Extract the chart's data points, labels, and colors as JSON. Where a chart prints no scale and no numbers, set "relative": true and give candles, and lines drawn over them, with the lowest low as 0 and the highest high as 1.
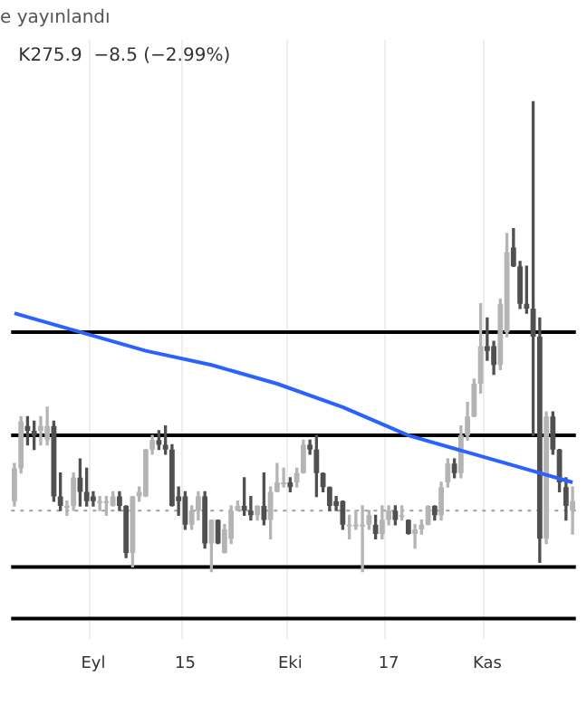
{
  "chart_data": {
    "type": "candlestick",
    "title": "e yayınlandı",
    "annotations": [
      "K275.9  −8.5 (−2.99%)"
    ],
    "relative": true,
    "grid": "x",
    "legend": false,
    "marker": "none",
    "categories": [
      null,
      null,
      null,
      null,
      null,
      null,
      null,
      null,
      null,
      null,
      null,
      null,
      "Eyl",
      null,
      null,
      null,
      null,
      null,
      null,
      null,
      null,
      null,
      null,
      null,
      null,
      null,
      "15",
      null,
      null,
      null,
      null,
      null,
      null,
      null,
      null,
      null,
      null,
      null,
      null,
      null,
      null,
      null,
      "Eki",
      null,
      null,
      null,
      null,
      null,
      null,
      null,
      null,
      null,
      null,
      null,
      null,
      null,
      null,
      "17",
      null,
      null,
      null,
      null,
      null,
      null,
      null,
      null,
      null,
      null,
      null,
      null,
      null,
      null,
      "Kas",
      null,
      null,
      null,
      null,
      null,
      null,
      null,
      null,
      null,
      null,
      null,
      null,
      null
    ],
    "ohlc": [
      [
        0.15,
        0.23,
        0.14,
        0.22
      ],
      [
        0.22,
        0.33,
        0.21,
        0.32
      ],
      [
        0.31,
        0.33,
        0.27,
        0.3
      ],
      [
        0.3,
        0.32,
        0.26,
        0.29
      ],
      [
        0.3,
        0.33,
        0.27,
        0.31
      ],
      [
        0.28,
        0.35,
        0.27,
        0.31
      ],
      [
        0.31,
        0.32,
        0.15,
        0.16
      ],
      [
        0.16,
        0.21,
        0.13,
        0.14
      ],
      [
        0.14,
        0.15,
        0.12,
        0.14
      ],
      [
        0.14,
        0.21,
        0.13,
        0.2
      ],
      [
        0.2,
        0.24,
        0.14,
        0.17
      ],
      [
        0.17,
        0.22,
        0.14,
        0.15
      ],
      [
        0.16,
        0.17,
        0.14,
        0.15
      ],
      [
        0.15,
        0.16,
        0.13,
        0.15
      ],
      [
        0.15,
        0.16,
        0.12,
        0.15
      ],
      [
        0.14,
        0.17,
        0.14,
        0.16
      ],
      [
        0.16,
        0.17,
        0.13,
        0.14
      ],
      [
        0.14,
        0.14,
        0.03,
        0.04
      ],
      [
        0.04,
        0.16,
        0.01,
        0.16
      ],
      [
        0.16,
        0.18,
        0.15,
        0.17
      ],
      [
        0.16,
        0.26,
        0.16,
        0.26
      ],
      [
        0.26,
        0.29,
        0.25,
        0.28
      ],
      [
        0.28,
        0.3,
        0.26,
        0.27
      ],
      [
        0.27,
        0.31,
        0.25,
        0.26
      ],
      [
        0.26,
        0.27,
        0.14,
        0.14
      ],
      [
        0.16,
        0.18,
        0.12,
        0.15
      ],
      [
        0.16,
        0.17,
        0.09,
        0.1
      ],
      [
        0.1,
        0.14,
        0.09,
        0.13
      ],
      [
        0.13,
        0.17,
        0.11,
        0.16
      ],
      [
        0.16,
        0.17,
        0.05,
        0.06
      ],
      [
        0.06,
        0.11,
        0.0,
        0.11
      ],
      [
        0.11,
        0.11,
        0.06,
        0.06
      ],
      [
        0.04,
        0.1,
        0.04,
        0.09
      ],
      [
        0.07,
        0.14,
        0.06,
        0.13
      ],
      [
        0.13,
        0.15,
        0.13,
        0.14
      ],
      [
        0.14,
        0.2,
        0.12,
        0.13
      ],
      [
        0.13,
        0.16,
        0.11,
        0.12
      ],
      [
        0.12,
        0.14,
        0.11,
        0.14
      ],
      [
        0.14,
        0.21,
        0.1,
        0.11
      ],
      [
        0.11,
        0.18,
        0.07,
        0.17
      ],
      [
        0.17,
        0.23,
        0.17,
        0.19
      ],
      [
        0.19,
        0.22,
        0.18,
        0.19
      ],
      [
        0.19,
        0.2,
        0.17,
        0.18
      ],
      [
        0.19,
        0.22,
        0.18,
        0.21
      ],
      [
        0.21,
        0.28,
        0.21,
        0.27
      ],
      [
        0.27,
        0.28,
        0.25,
        0.26
      ],
      [
        0.26,
        0.29,
        0.16,
        0.21
      ],
      [
        0.21,
        0.21,
        0.17,
        0.18
      ],
      [
        0.18,
        0.18,
        0.13,
        0.14
      ],
      [
        0.15,
        0.16,
        0.13,
        0.14
      ],
      [
        0.15,
        0.15,
        0.09,
        0.1
      ],
      [
        0.1,
        0.12,
        0.07,
        0.1
      ],
      [
        0.1,
        0.13,
        0.09,
        0.1
      ],
      [
        0.1,
        0.14,
        0.0,
        0.1
      ],
      [
        0.1,
        0.13,
        0.09,
        0.12
      ],
      [
        0.1,
        0.12,
        0.07,
        0.08
      ],
      [
        0.08,
        0.14,
        0.07,
        0.11
      ],
      [
        0.11,
        0.14,
        0.1,
        0.13
      ],
      [
        0.13,
        0.14,
        0.1,
        0.11
      ],
      [
        0.12,
        0.14,
        0.11,
        0.12
      ],
      [
        0.11,
        0.11,
        0.08,
        0.08
      ],
      [
        0.08,
        0.1,
        0.05,
        0.09
      ],
      [
        0.09,
        0.11,
        0.08,
        0.1
      ],
      [
        0.1,
        0.14,
        0.1,
        0.14
      ],
      [
        0.14,
        0.14,
        0.11,
        0.12
      ],
      [
        0.12,
        0.19,
        0.11,
        0.18
      ],
      [
        0.19,
        0.24,
        0.18,
        0.23
      ],
      [
        0.23,
        0.24,
        0.2,
        0.21
      ],
      [
        0.21,
        0.31,
        0.2,
        0.29
      ],
      [
        0.29,
        0.36,
        0.28,
        0.33
      ],
      [
        0.33,
        0.41,
        0.33,
        0.4
      ],
      [
        0.4,
        0.57,
        0.38,
        0.48
      ],
      [
        0.48,
        0.54,
        0.45,
        0.47
      ],
      [
        0.48,
        0.49,
        0.42,
        0.44
      ],
      [
        0.44,
        0.58,
        0.43,
        0.57
      ],
      [
        0.51,
        0.72,
        0.5,
        0.68
      ],
      [
        0.69,
        0.73,
        0.65,
        0.65
      ],
      [
        0.65,
        0.66,
        0.56,
        0.57
      ],
      [
        0.57,
        0.65,
        0.55,
        0.56
      ],
      [
        0.56,
        1.0,
        0.29,
        0.5
      ],
      [
        0.5,
        0.54,
        0.02,
        0.07
      ],
      [
        0.07,
        0.34,
        0.06,
        0.33
      ],
      [
        0.33,
        0.34,
        0.25,
        0.26
      ],
      [
        0.26,
        0.26,
        0.17,
        0.19
      ],
      [
        0.18,
        0.2,
        0.11,
        0.14
      ],
      [
        0.13,
        0.18,
        0.08,
        0.15
      ]
    ],
    "series": [
      {
        "type": "line",
        "color": "#2962ff",
        "values": [
          0.55,
          null,
          null,
          null,
          null,
          null,
          null,
          null,
          null,
          null,
          0.51,
          null,
          null,
          null,
          null,
          null,
          null,
          null,
          null,
          null,
          0.47,
          null,
          null,
          null,
          null,
          null,
          null,
          null,
          null,
          null,
          0.44,
          null,
          null,
          null,
          null,
          null,
          null,
          null,
          null,
          null,
          0.4,
          null,
          null,
          null,
          null,
          null,
          null,
          null,
          null,
          null,
          0.35,
          null,
          null,
          null,
          null,
          null,
          null,
          null,
          null,
          null,
          0.29,
          null,
          null,
          null,
          null,
          null,
          null,
          null,
          null,
          null,
          0.25,
          null,
          null,
          null,
          null,
          null,
          null,
          null,
          null,
          null,
          0.21,
          null,
          null,
          null,
          null,
          0.19
        ]
      }
    ],
    "ref_lines": [
      {
        "axis": "y",
        "value": 0.51,
        "color": "#000000",
        "line_style": "solid"
      },
      {
        "axis": "y",
        "value": 0.29,
        "color": "#000000",
        "line_style": "solid"
      },
      {
        "axis": "y",
        "value": 0.01,
        "color": "#000000",
        "line_style": "solid"
      },
      {
        "axis": "y",
        "value": -0.1,
        "color": "#000000",
        "line_style": "solid"
      },
      {
        "axis": "y",
        "value": 0.13,
        "color": "#9e9e9e",
        "line_style": "dotted"
      }
    ]
  }
}
